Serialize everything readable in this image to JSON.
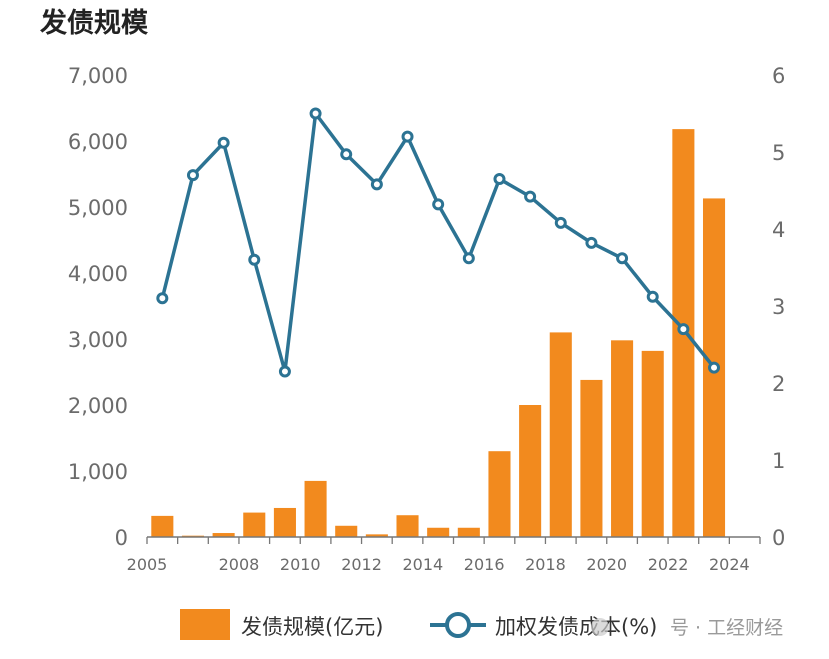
{
  "chart_data": {
    "type": "bar",
    "title": "发债规模",
    "categories": [
      "2005",
      "2006",
      "2007",
      "2008",
      "2009",
      "2010",
      "2011",
      "2012",
      "2013",
      "2014",
      "2015",
      "2016",
      "2017",
      "2018",
      "2019",
      "2020",
      "2021",
      "2022",
      "2023",
      "2024"
    ],
    "x_tick_labels": [
      "2005",
      "2008",
      "2010",
      "2012",
      "2014",
      "2016",
      "2018",
      "2020",
      "2022",
      "2024"
    ],
    "series": [
      {
        "name": "发债规模(亿元)",
        "kind": "bar",
        "axis": "left",
        "color": "#f28a1e",
        "values": [
          320,
          20,
          60,
          370,
          440,
          850,
          170,
          40,
          330,
          140,
          140,
          1300,
          2000,
          3100,
          2380,
          2980,
          2820,
          6180,
          5130,
          null
        ]
      },
      {
        "name": "加权发债成本(%)",
        "kind": "line",
        "axis": "right",
        "color": "#2c7393",
        "values": [
          3.1,
          4.7,
          5.12,
          3.6,
          2.15,
          5.5,
          4.97,
          4.58,
          5.2,
          4.32,
          3.62,
          4.65,
          4.42,
          4.08,
          3.82,
          3.62,
          3.12,
          2.7,
          2.2,
          null
        ]
      }
    ],
    "y_left": {
      "ylim": [
        0,
        7000
      ],
      "ticks": [
        "0",
        "1,000",
        "2,000",
        "3,000",
        "4,000",
        "5,000",
        "6,000",
        "7,000"
      ]
    },
    "y_right": {
      "ylim": [
        0,
        6
      ],
      "ticks": [
        "0",
        "1",
        "2",
        "3",
        "4",
        "5",
        "6"
      ]
    },
    "legend": {
      "position": "bottom",
      "bar_label": "发债规模(亿元)",
      "line_label": "加权发债成本(%)"
    },
    "grid": false
  },
  "watermark": {
    "text": "号 · 工经财经"
  }
}
